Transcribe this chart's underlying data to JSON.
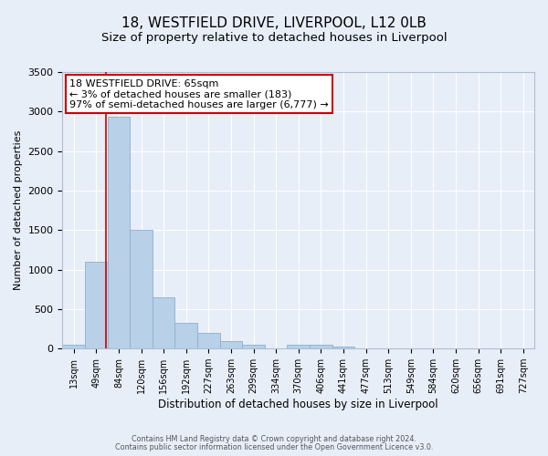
{
  "title": "18, WESTFIELD DRIVE, LIVERPOOL, L12 0LB",
  "subtitle": "Size of property relative to detached houses in Liverpool",
  "xlabel": "Distribution of detached houses by size in Liverpool",
  "ylabel": "Number of detached properties",
  "bar_labels": [
    "13sqm",
    "49sqm",
    "84sqm",
    "120sqm",
    "156sqm",
    "192sqm",
    "227sqm",
    "263sqm",
    "299sqm",
    "334sqm",
    "370sqm",
    "406sqm",
    "441sqm",
    "477sqm",
    "513sqm",
    "549sqm",
    "584sqm",
    "620sqm",
    "656sqm",
    "691sqm",
    "727sqm"
  ],
  "bar_values": [
    50,
    1100,
    2930,
    1500,
    650,
    330,
    200,
    100,
    50,
    5,
    50,
    50,
    20,
    5,
    0,
    0,
    0,
    0,
    0,
    0,
    0
  ],
  "bar_color": "#b8d0e8",
  "bar_edge_color": "#8ab0d0",
  "ylim": [
    0,
    3500
  ],
  "yticks": [
    0,
    500,
    1000,
    1500,
    2000,
    2500,
    3000,
    3500
  ],
  "red_line_x": 1.45,
  "annotation_title": "18 WESTFIELD DRIVE: 65sqm",
  "annotation_line1": "← 3% of detached houses are smaller (183)",
  "annotation_line2": "97% of semi-detached houses are larger (6,777) →",
  "annotation_box_color": "#ffffff",
  "annotation_box_edge": "#cc0000",
  "footer_line1": "Contains HM Land Registry data © Crown copyright and database right 2024.",
  "footer_line2": "Contains public sector information licensed under the Open Government Licence v3.0.",
  "background_color": "#e8eef8",
  "grid_color": "#ffffff",
  "title_fontsize": 11,
  "subtitle_fontsize": 9.5
}
